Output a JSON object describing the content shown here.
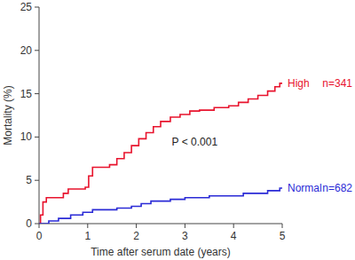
{
  "chart_data": {
    "type": "line",
    "line_style": "step",
    "x_label": "Time after serum date (years)",
    "y_label": "Mortality (%)",
    "annotations": [
      "P < 0.001"
    ],
    "xlim": [
      0,
      5
    ],
    "xticks": [
      0,
      1,
      2,
      3,
      4,
      5
    ],
    "ylim": [
      0,
      25
    ],
    "yticks": [
      0,
      5,
      10,
      15,
      20,
      25
    ],
    "grid": false,
    "series": [
      {
        "name": "High",
        "n_label": "n=341",
        "color": "#e8132d",
        "x": [
          0,
          0.03,
          0.08,
          0.15,
          0.5,
          0.6,
          0.95,
          1.02,
          1.1,
          1.45,
          1.6,
          1.75,
          1.9,
          2.05,
          2.2,
          2.35,
          2.5,
          2.7,
          2.9,
          3.1,
          3.3,
          3.6,
          3.9,
          4.1,
          4.3,
          4.5,
          4.7,
          4.85,
          4.95,
          5.0
        ],
        "values": [
          0,
          1.0,
          2.5,
          3.0,
          3.5,
          4.0,
          4.2,
          5.5,
          6.5,
          6.8,
          7.5,
          8.2,
          9.0,
          9.8,
          10.5,
          11.2,
          11.8,
          12.3,
          12.6,
          13.0,
          13.1,
          13.4,
          13.6,
          14.0,
          14.4,
          14.8,
          15.3,
          15.8,
          16.2,
          16.2
        ]
      },
      {
        "name": "Normal",
        "n_label": "n=682",
        "color": "#2a2ad6",
        "x": [
          0,
          0.2,
          0.4,
          0.65,
          0.9,
          1.1,
          1.6,
          1.9,
          2.1,
          2.3,
          2.7,
          3.0,
          3.5,
          4.2,
          4.7,
          4.95,
          5.0
        ],
        "values": [
          0,
          0.3,
          0.6,
          1.0,
          1.3,
          1.6,
          1.8,
          2.0,
          2.3,
          2.6,
          2.8,
          3.0,
          3.2,
          3.5,
          3.8,
          4.1,
          4.1
        ]
      }
    ]
  }
}
